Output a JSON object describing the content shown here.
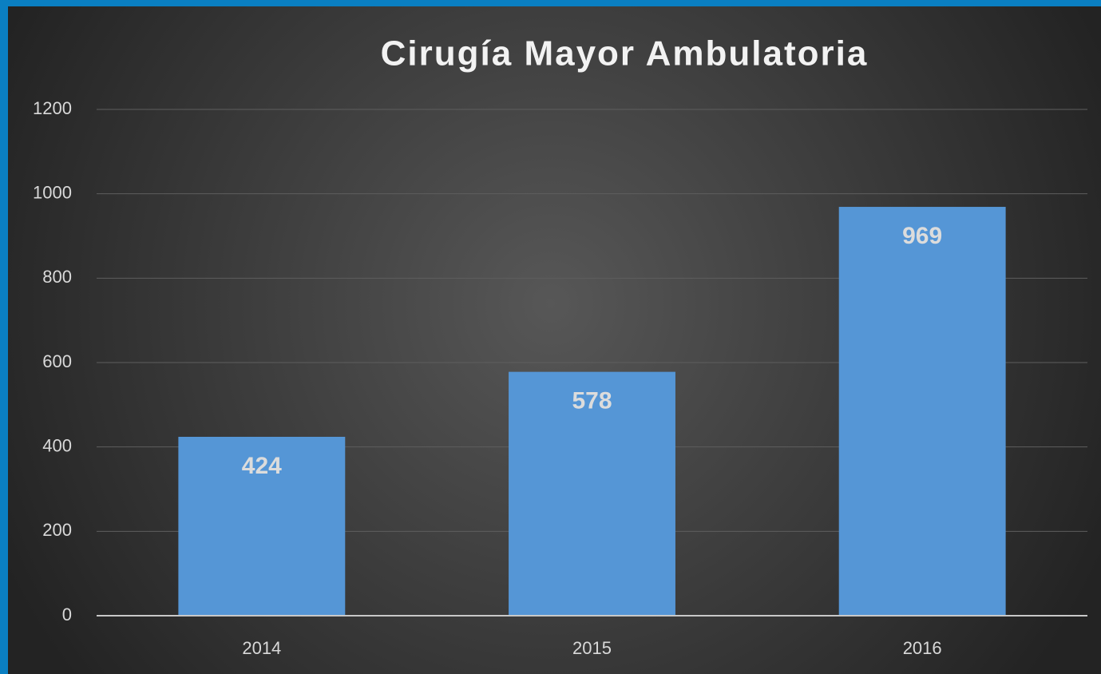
{
  "chart_data": {
    "type": "bar",
    "title": "Cirugía Mayor Ambulatoria",
    "categories": [
      "2014",
      "2015",
      "2016"
    ],
    "values": [
      424,
      578,
      969
    ],
    "color": "#5596d6",
    "ylim": [
      0,
      1200
    ],
    "yticks": [
      0,
      200,
      400,
      600,
      800,
      1000,
      1200
    ],
    "grid": true
  }
}
